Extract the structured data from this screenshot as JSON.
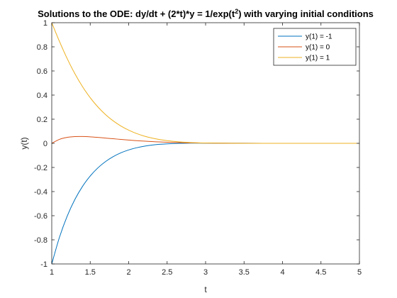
{
  "chart_data": {
    "type": "line",
    "title_main": "Solutions to the ODE: dy/dt + (2*t)*y = 1/exp(t",
    "title_sup": "2",
    "title_tail": ") with varying initial conditions",
    "xlabel": "t",
    "ylabel": "y(t)",
    "xlim": [
      1,
      5
    ],
    "ylim": [
      -1,
      1
    ],
    "xticks": [
      1,
      1.5,
      2,
      2.5,
      3,
      3.5,
      4,
      4.5,
      5
    ],
    "xtick_labels": [
      "1",
      "1.5",
      "2",
      "2.5",
      "3",
      "3.5",
      "4",
      "4.5",
      "5"
    ],
    "yticks": [
      -1,
      -0.8,
      -0.6,
      -0.4,
      -0.2,
      0,
      0.2,
      0.4,
      0.6,
      0.8,
      1
    ],
    "ytick_labels": [
      "-1",
      "-0.8",
      "-0.6",
      "-0.4",
      "-0.2",
      "0",
      "0.2",
      "0.4",
      "0.6",
      "0.8",
      "1"
    ],
    "grid": false,
    "legend_position": "top-right",
    "x": [
      1,
      1.1,
      1.2,
      1.3,
      1.4,
      1.5,
      1.6,
      1.7,
      1.8,
      1.9,
      2,
      2.1,
      2.2,
      2.3,
      2.4,
      2.5,
      2.6,
      2.7,
      2.8,
      2.9,
      3,
      3.5,
      4,
      4.5,
      5
    ],
    "series": [
      {
        "name": "y(1) = -1",
        "color": "#0072BD",
        "values": [
          -1,
          -0.7796,
          -0.6046,
          -0.4661,
          -0.3569,
          -0.2708,
          -0.2033,
          -0.1506,
          -0.1098,
          -0.0785,
          -0.0549,
          -0.0371,
          -0.0241,
          -0.0148,
          -0.0083,
          -0.0041,
          -0.0014,
          0.0003,
          0.0011,
          0.0014,
          0.0014,
          0.0006,
          0.0001,
          0.0,
          0.0
        ]
      },
      {
        "name": "y(1) = 0",
        "color": "#D95319",
        "values": [
          0,
          0.0328,
          0.0493,
          0.0559,
          0.0565,
          0.0537,
          0.0491,
          0.0436,
          0.0379,
          0.0323,
          0.0271,
          0.0224,
          0.0182,
          0.0146,
          0.0115,
          0.009,
          0.0069,
          0.0052,
          0.0039,
          0.0029,
          0.0021,
          0.0004,
          0.0001,
          0.0,
          0.0
        ]
      },
      {
        "name": "y(1) = 1",
        "color": "#EDB120",
        "values": [
          1,
          0.8452,
          0.7032,
          0.5779,
          0.4699,
          0.3782,
          0.3015,
          0.2378,
          0.1856,
          0.1432,
          0.1092,
          0.082,
          0.0605,
          0.0439,
          0.0313,
          0.022,
          0.0152,
          0.0102,
          0.0067,
          0.0043,
          0.0028,
          0.0002,
          0.0,
          0.0,
          0.0
        ]
      }
    ]
  }
}
